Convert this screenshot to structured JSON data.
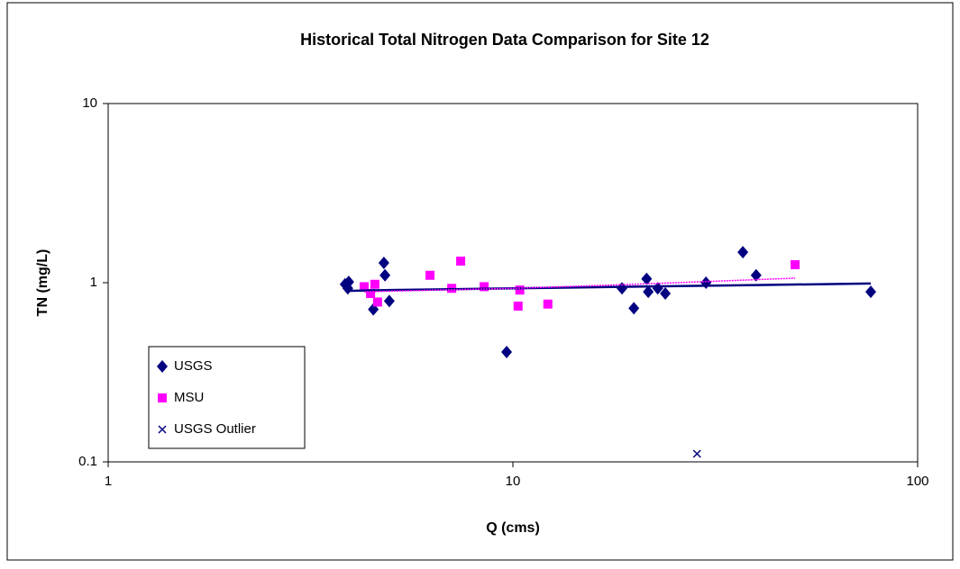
{
  "chart_data": {
    "type": "scatter",
    "title": "Historical Total Nitrogen Data Comparison for Site 12",
    "x_label": "Q (cms)",
    "y_label": "TN (mg/L)",
    "x_log": true,
    "y_log": true,
    "xlim": [
      1,
      100
    ],
    "ylim": [
      0.1,
      10
    ],
    "xticks": [
      1,
      10,
      100
    ],
    "yticks": [
      0.1,
      1,
      10
    ],
    "legend": "lower-left",
    "series": [
      {
        "name": "USGS",
        "color": "#000080",
        "marker": "diamond",
        "x": [
          3.85,
          3.93,
          3.91,
          4.52,
          4.8,
          4.83,
          4.95,
          9.65,
          18.6,
          19.9,
          21.4,
          21.6,
          22.8,
          23.8,
          30.0,
          37.0,
          39.9,
          76.6
        ],
        "values": [
          0.98,
          1.01,
          0.93,
          0.71,
          1.29,
          1.1,
          0.79,
          0.41,
          0.93,
          0.72,
          1.05,
          0.89,
          0.93,
          0.87,
          1.0,
          1.48,
          1.1,
          0.89
        ]
      },
      {
        "name": "MSU",
        "color": "#ff00ff",
        "marker": "square",
        "x": [
          4.29,
          4.45,
          4.56,
          4.63,
          6.24,
          7.06,
          7.43,
          8.49,
          10.3,
          10.4,
          12.2,
          49.8
        ],
        "values": [
          0.95,
          0.87,
          0.98,
          0.78,
          1.1,
          0.93,
          1.32,
          0.95,
          0.74,
          0.91,
          0.76,
          1.26
        ]
      },
      {
        "name": "USGS Outlier",
        "color": "#000080",
        "marker": "x",
        "x": [
          28.5
        ],
        "values": [
          0.111
        ]
      },
      {
        "color": "#000080",
        "marker": "line",
        "x": [
          3.85,
          5,
          10,
          20,
          40,
          76.6
        ],
        "values": [
          0.9,
          0.91,
          0.93,
          0.95,
          0.97,
          0.99
        ]
      },
      {
        "color": "#ff00ff",
        "marker": "dotted-line",
        "x": [
          4.29,
          10,
          20,
          49.8
        ],
        "values": [
          0.89,
          0.93,
          0.98,
          1.06
        ]
      }
    ]
  }
}
